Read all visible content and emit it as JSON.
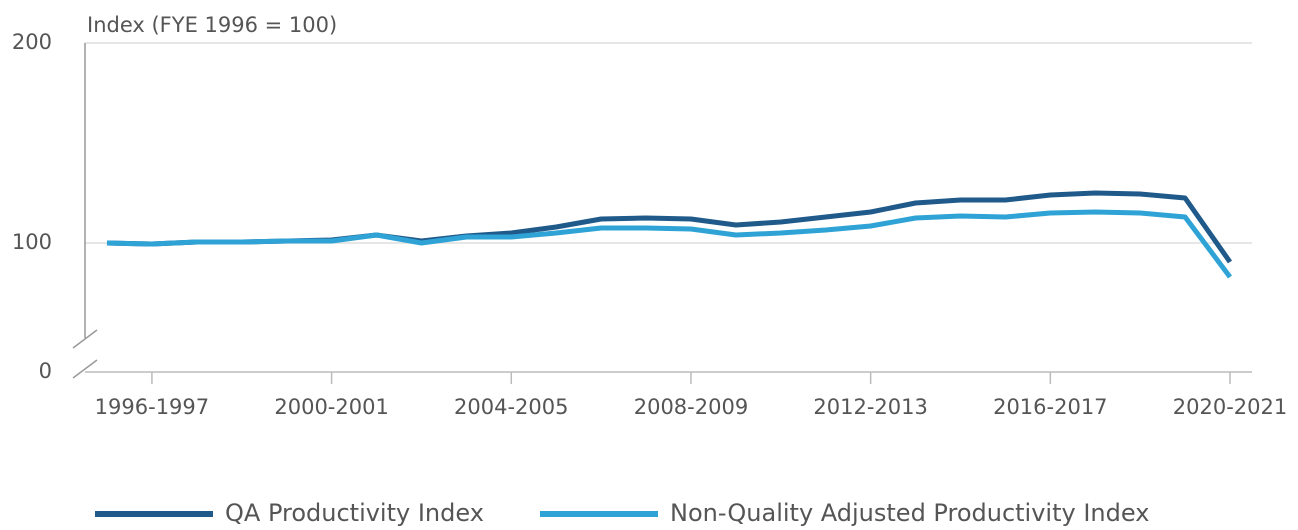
{
  "chart_data": {
    "type": "line",
    "y_axis_label": "Index (FYE 1996 = 100)",
    "categories": [
      null,
      "1996-1997",
      null,
      null,
      null,
      "2000-2001",
      null,
      null,
      null,
      "2004-2005",
      null,
      null,
      null,
      "2008-2009",
      null,
      null,
      null,
      "2012-2013",
      null,
      null,
      null,
      "2016-2017",
      null,
      null,
      null,
      "2020-2021"
    ],
    "series": [
      {
        "name": "QA Productivity Index",
        "color": "#1f5a8a",
        "values": [
          100,
          99.5,
          100.5,
          100.5,
          101,
          101.5,
          104,
          101,
          103.5,
          105,
          108,
          112,
          112.5,
          112,
          109,
          110.5,
          113,
          115.5,
          120,
          121.5,
          121.5,
          124,
          125,
          124.5,
          122.5,
          90.5
        ]
      },
      {
        "name": "Non-Quality Adjusted Productivity Index",
        "color": "#2fa3d5",
        "values": [
          100,
          99.5,
          100.5,
          100.5,
          101,
          101,
          104,
          100,
          103,
          103,
          105,
          107.5,
          107.5,
          107,
          104,
          105,
          106.5,
          108.5,
          112.5,
          113.5,
          113,
          115,
          115.5,
          115,
          113,
          83
        ]
      }
    ],
    "ylim": [
      0,
      200
    ],
    "yticks": [
      0,
      100,
      200
    ],
    "axis_break": true,
    "grid": true,
    "legend": "bottom"
  }
}
